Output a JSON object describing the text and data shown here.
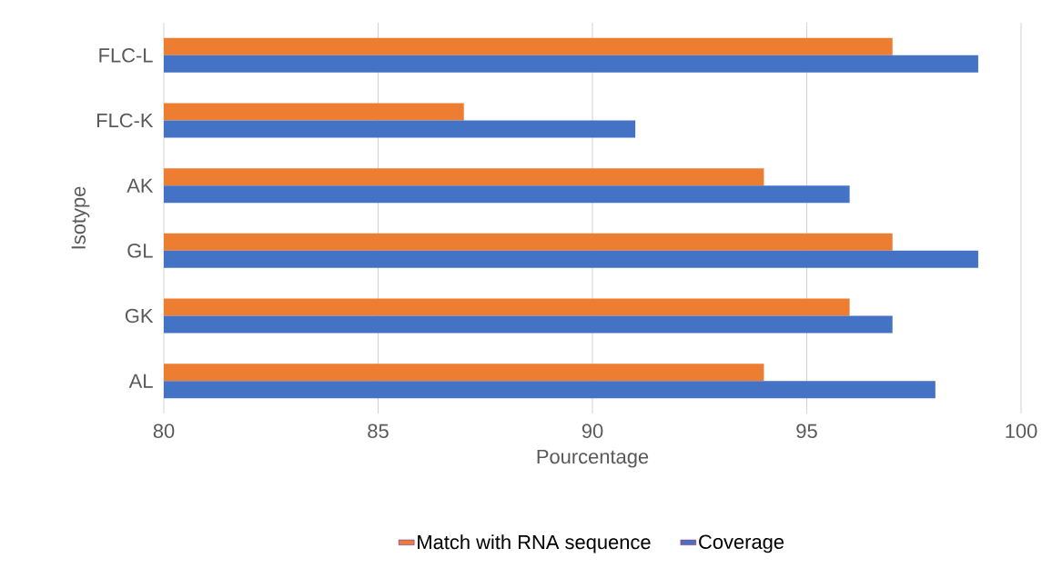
{
  "chart_data": {
    "type": "bar",
    "orientation": "horizontal",
    "xlabel": "Pourcentage",
    "ylabel": "Isotype",
    "categories": [
      "FLC-L",
      "FLC-K",
      "AK",
      "GL",
      "GK",
      "AL"
    ],
    "series": [
      {
        "name": "Match with RNA sequence",
        "color": "#ed7d31",
        "values": [
          97,
          87,
          94,
          97,
          96,
          94
        ]
      },
      {
        "name": "Coverage",
        "color": "#4472c4",
        "values": [
          99,
          91,
          96,
          99,
          97,
          98
        ]
      }
    ],
    "xlim": [
      80,
      100
    ],
    "xticks": [
      80,
      85,
      90,
      95,
      100
    ],
    "grid": "x",
    "legend": "bottom"
  }
}
